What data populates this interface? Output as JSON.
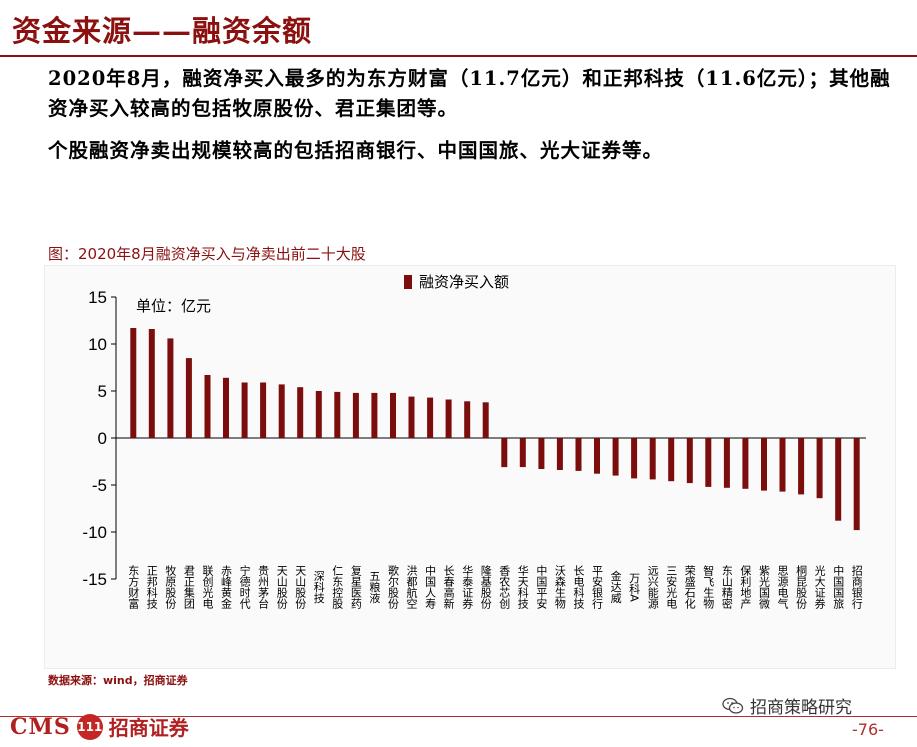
{
  "header": {
    "title": "资金来源——融资余额"
  },
  "body": {
    "paragraph1": "2020年8月，融资净买入最多的为东方财富（11.7亿元）和正邦科技（11.6亿元）；其他融资净买入较高的包括牧原股份、君正集团等。",
    "paragraph2": "个股融资净卖出规模较高的包括招商银行、中国国旅、光大证券等。"
  },
  "chart_caption": "图：2020年8月融资净买入与净卖出前二十大股",
  "source_note": "数据来源：wind，招商证券",
  "wechat_label": "招商策略研究",
  "footer": {
    "logo_cms": "CMS",
    "logo_badge": "111",
    "logo_name": "招商证券",
    "page_number": "-76-"
  },
  "colors": {
    "accent": "#8b1010",
    "bar": "#7b0d0d"
  },
  "chart_data": {
    "type": "bar",
    "title": "",
    "unit_label": "单位：亿元",
    "legend": "融资净买入额",
    "legend_position": "top-center",
    "ylim": [
      -15,
      15
    ],
    "yticks": [
      15,
      10,
      5,
      0,
      -5,
      -10,
      -15
    ],
    "grid": false,
    "categories": [
      "东方财富",
      "正邦科技",
      "牧原股份",
      "君正集团",
      "联创光电",
      "赤峰黄金",
      "宁德时代",
      "贵州茅台",
      "天山股份",
      "天山股份",
      "深科技",
      "仁东控股",
      "复星医药",
      "五粮液",
      "歌尔股份",
      "洪都航空",
      "中国人寿",
      "长春高新",
      "华泰证券",
      "隆基股份",
      "香农芯创",
      "华天科技",
      "中国平安",
      "沃森生物",
      "长电科技",
      "平安银行",
      "金达威",
      "万科A",
      "远兴能源",
      "三安光电",
      "荣盛石化",
      "智飞生物",
      "东山精密",
      "保利地产",
      "紫光国微",
      "思源电气",
      "桐昆股份",
      "光大证券",
      "中国国旅",
      "招商银行"
    ],
    "values": [
      11.7,
      11.6,
      10.6,
      8.5,
      6.7,
      6.4,
      5.9,
      5.9,
      5.7,
      5.4,
      5.0,
      4.9,
      4.8,
      4.8,
      4.8,
      4.4,
      4.3,
      4.1,
      3.9,
      3.8,
      -3.1,
      -3.1,
      -3.3,
      -3.4,
      -3.5,
      -3.8,
      -4.0,
      -4.3,
      -4.4,
      -4.6,
      -4.8,
      -5.2,
      -5.3,
      -5.4,
      -5.6,
      -5.7,
      -6.0,
      -6.4,
      -8.8,
      -9.8
    ]
  }
}
